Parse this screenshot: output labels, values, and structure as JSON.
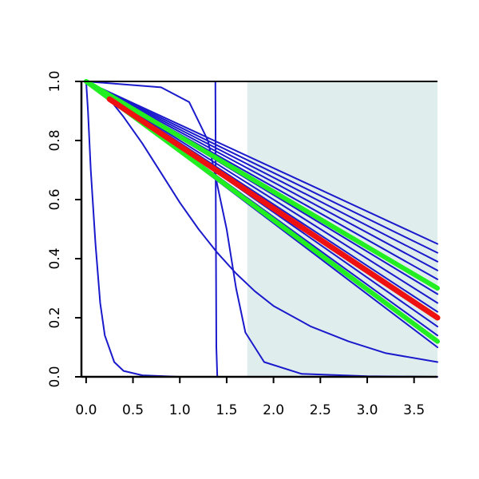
{
  "chart_data": {
    "type": "line",
    "xlim": [
      -0.05,
      3.75
    ],
    "ylim": [
      0,
      1
    ],
    "x_ticks": [
      0.0,
      0.5,
      1.0,
      1.5,
      2.0,
      2.5,
      3.0,
      3.5
    ],
    "x_tick_labels": [
      "0.0",
      "0.5",
      "1.0",
      "1.5",
      "2.0",
      "2.5",
      "3.0",
      "3.5"
    ],
    "y_ticks": [
      0.0,
      0.2,
      0.4,
      0.6,
      0.8,
      1.0
    ],
    "y_tick_labels": [
      "0.0",
      "0.2",
      "0.4",
      "0.6",
      "0.8",
      "1.0"
    ],
    "grid": false,
    "shaded_region": {
      "x_start": 1.72,
      "x_end": 3.75,
      "color": "#e0eded"
    },
    "colors": {
      "thin": "#1a1acc",
      "green": "#22ee22",
      "red": "#ee1111",
      "axis": "#000000"
    },
    "series": [
      {
        "style": "thin",
        "points": [
          [
            0,
            1
          ],
          [
            0.02,
            0.9
          ],
          [
            0.05,
            0.7
          ],
          [
            0.1,
            0.45
          ],
          [
            0.15,
            0.25
          ],
          [
            0.2,
            0.14
          ],
          [
            0.3,
            0.05
          ],
          [
            0.4,
            0.02
          ],
          [
            0.6,
            0.005
          ],
          [
            1.0,
            0.0
          ]
        ]
      },
      {
        "style": "thin",
        "points": [
          [
            0,
            1
          ],
          [
            1.38,
            1.0
          ],
          [
            1.385,
            0.5
          ],
          [
            1.39,
            0.1
          ],
          [
            1.4,
            0.0
          ]
        ]
      },
      {
        "style": "thin",
        "points": [
          [
            0,
            1
          ],
          [
            0.8,
            0.98
          ],
          [
            1.1,
            0.93
          ],
          [
            1.3,
            0.8
          ],
          [
            1.5,
            0.5
          ],
          [
            1.6,
            0.3
          ],
          [
            1.7,
            0.15
          ],
          [
            1.9,
            0.05
          ],
          [
            2.3,
            0.01
          ],
          [
            3.0,
            0.002
          ],
          [
            3.75,
            0.0
          ]
        ]
      },
      {
        "style": "thin",
        "points": [
          [
            0,
            1
          ],
          [
            0.2,
            0.96
          ],
          [
            0.4,
            0.88
          ],
          [
            0.6,
            0.79
          ],
          [
            0.8,
            0.69
          ],
          [
            1.0,
            0.59
          ],
          [
            1.2,
            0.5
          ],
          [
            1.4,
            0.42
          ],
          [
            1.6,
            0.35
          ],
          [
            1.8,
            0.29
          ],
          [
            2.0,
            0.24
          ],
          [
            2.4,
            0.17
          ],
          [
            2.8,
            0.12
          ],
          [
            3.2,
            0.08
          ],
          [
            3.75,
            0.05
          ]
        ]
      },
      {
        "style": "thin",
        "points": [
          [
            0,
            1
          ],
          [
            3.75,
            0.1
          ]
        ]
      },
      {
        "style": "thin",
        "points": [
          [
            0,
            1
          ],
          [
            3.75,
            0.14
          ]
        ]
      },
      {
        "style": "thin",
        "points": [
          [
            0,
            1
          ],
          [
            3.75,
            0.17
          ]
        ]
      },
      {
        "style": "thin",
        "points": [
          [
            0,
            1
          ],
          [
            3.75,
            0.22
          ]
        ]
      },
      {
        "style": "thin",
        "points": [
          [
            0,
            1
          ],
          [
            3.75,
            0.25
          ]
        ]
      },
      {
        "style": "thin",
        "points": [
          [
            0,
            1
          ],
          [
            3.75,
            0.28
          ]
        ]
      },
      {
        "style": "thin",
        "points": [
          [
            0,
            1
          ],
          [
            3.75,
            0.33
          ]
        ]
      },
      {
        "style": "thin",
        "points": [
          [
            0,
            1
          ],
          [
            3.75,
            0.36
          ]
        ]
      },
      {
        "style": "thin",
        "points": [
          [
            0,
            1
          ],
          [
            3.75,
            0.39
          ]
        ]
      },
      {
        "style": "thin",
        "points": [
          [
            0,
            1
          ],
          [
            3.75,
            0.42
          ]
        ]
      },
      {
        "style": "thin",
        "points": [
          [
            0,
            1
          ],
          [
            3.75,
            0.45
          ]
        ]
      },
      {
        "style": "green",
        "points": [
          [
            0,
            1
          ],
          [
            3.75,
            0.12
          ]
        ]
      },
      {
        "style": "green",
        "points": [
          [
            0,
            1
          ],
          [
            3.75,
            0.3
          ]
        ]
      },
      {
        "style": "red",
        "points": [
          [
            0.25,
            0.94
          ],
          [
            3.75,
            0.2
          ]
        ]
      }
    ]
  }
}
